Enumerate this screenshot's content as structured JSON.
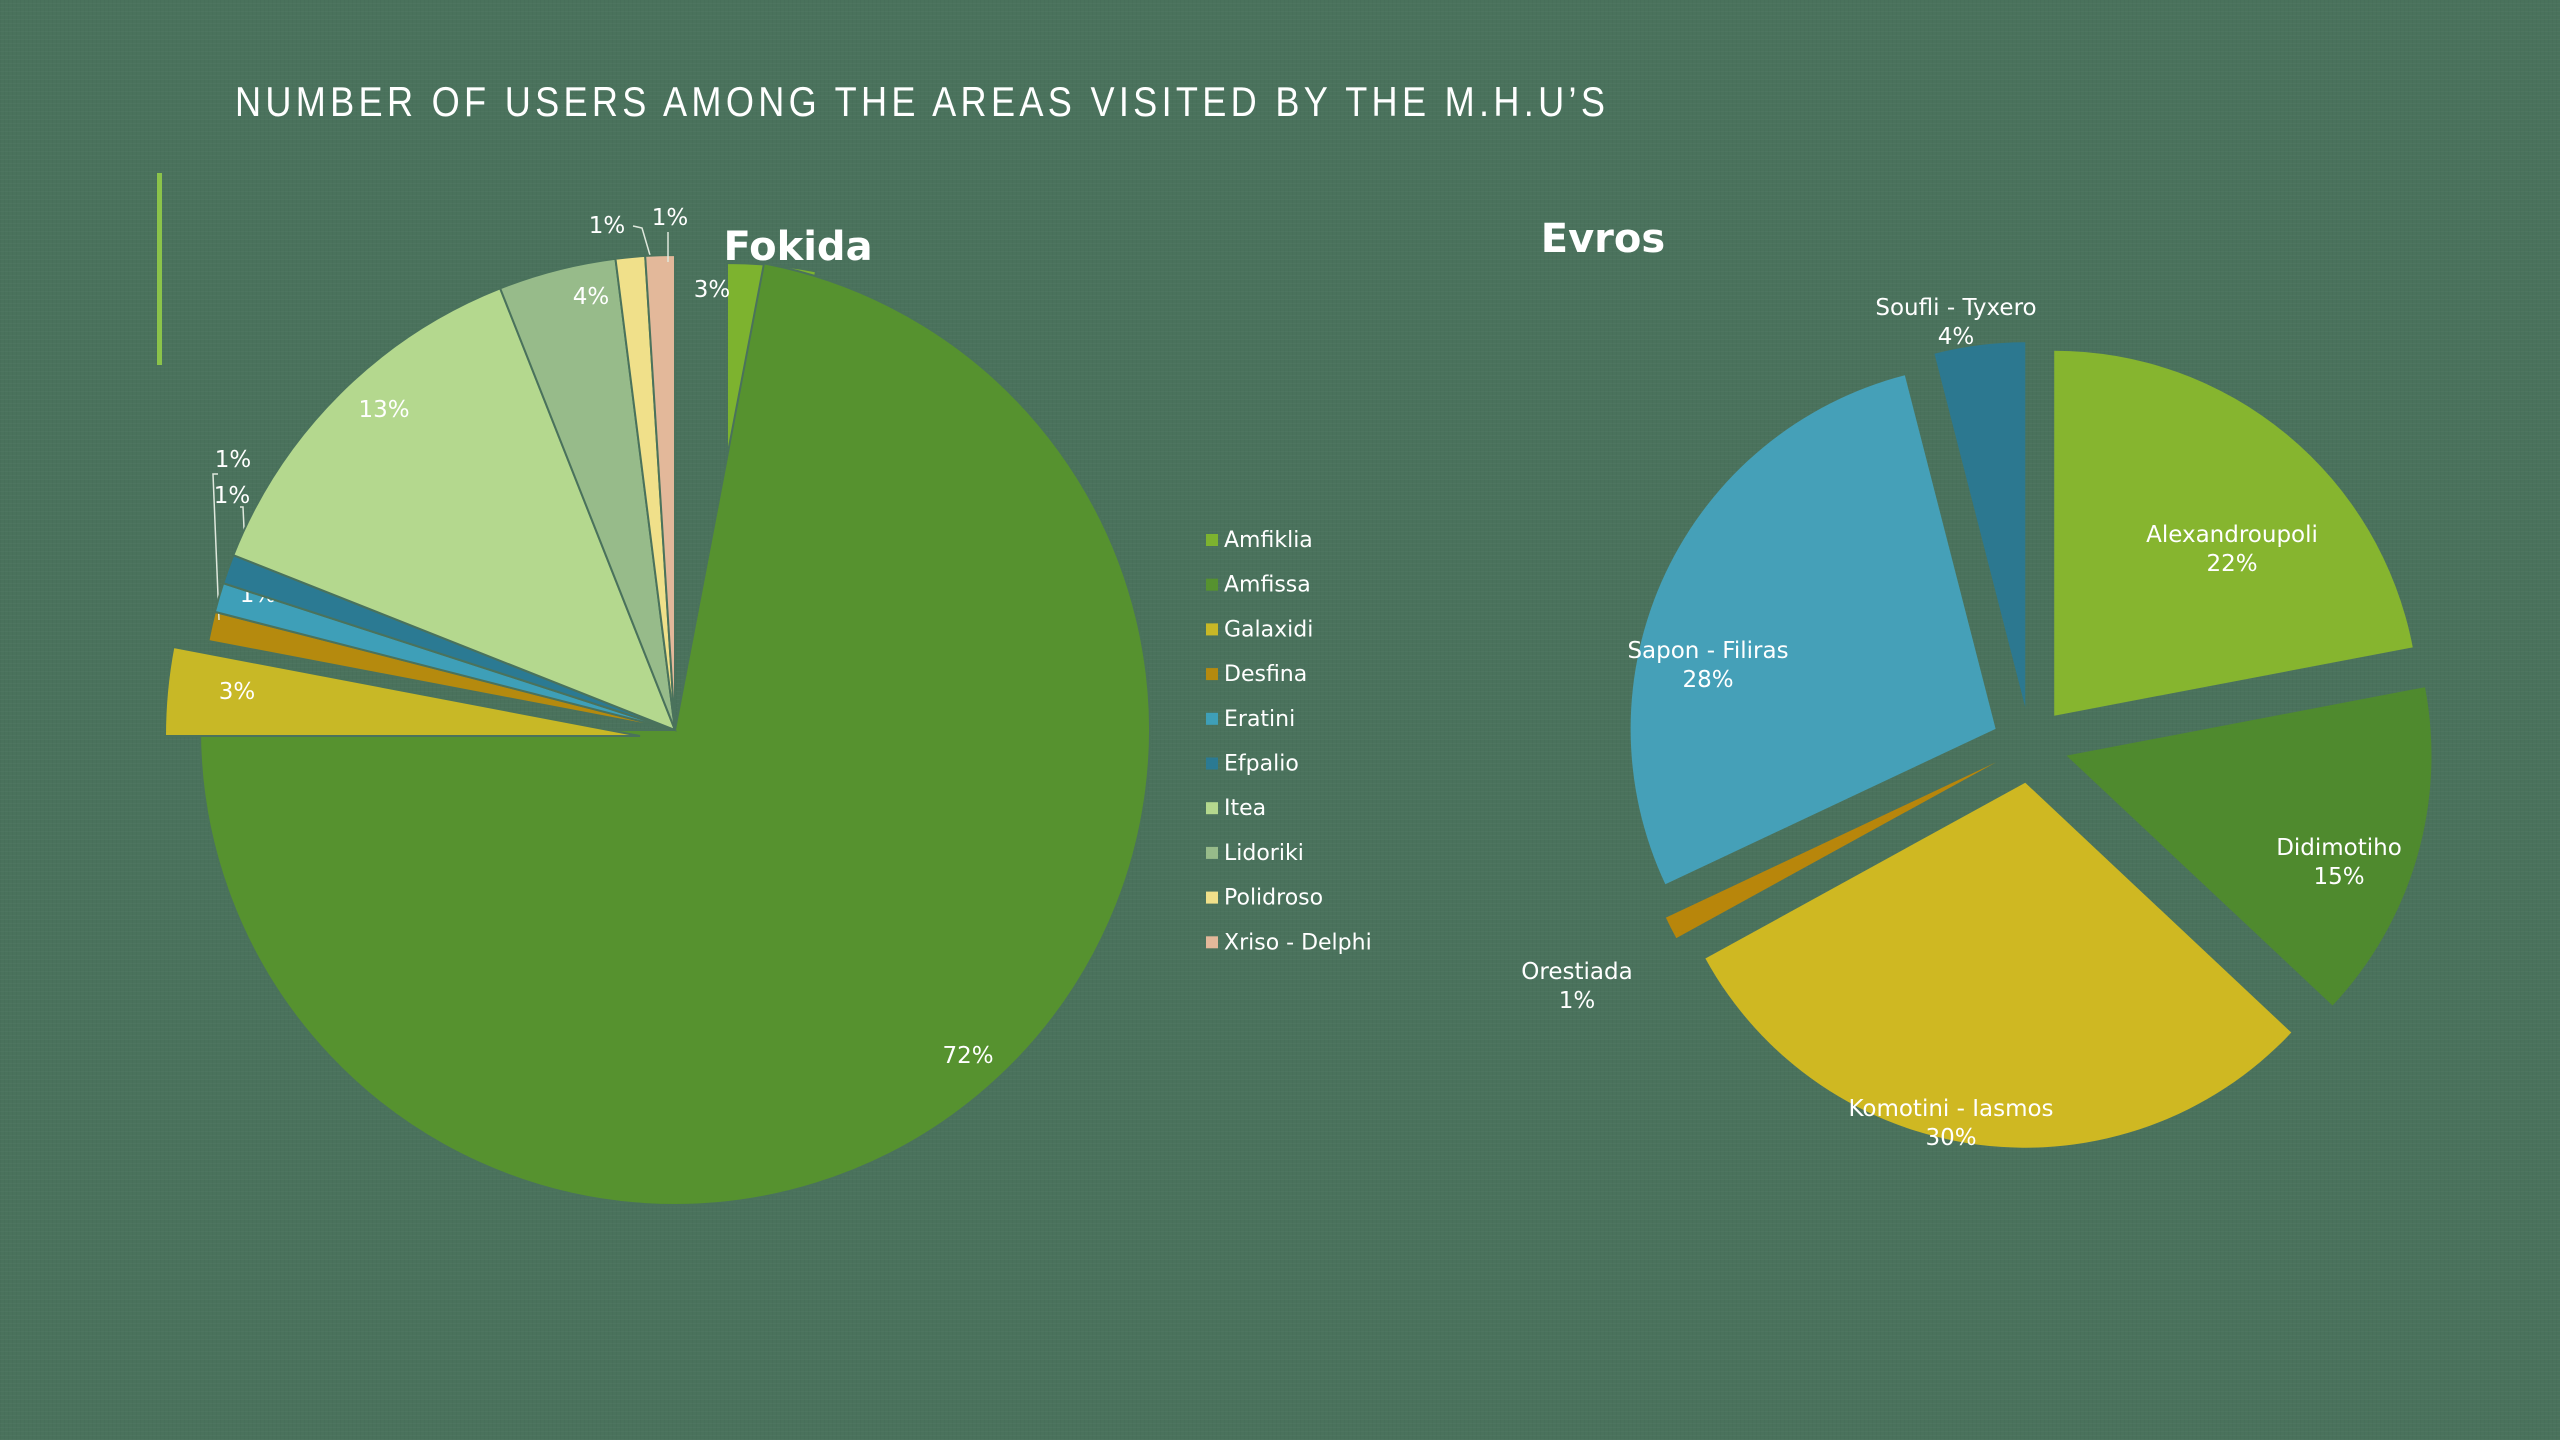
{
  "slide": {
    "title": "NUMBER OF USERS AMONG THE AREAS VISITED BY THE M.H.U’S"
  },
  "chart_data": [
    {
      "type": "pie",
      "title": "Fokida",
      "categories": [
        "Amfiklia",
        "Amfissa",
        "Galaxidi",
        "Desfina",
        "Eratini",
        "Efpalio",
        "Itea",
        "Lidoriki",
        "Polidroso",
        "Xriso - Delphi"
      ],
      "values": [
        3,
        72,
        3,
        1,
        1,
        1,
        13,
        4,
        1,
        1
      ],
      "data_labels": [
        "3%",
        "72%",
        "3%",
        "1%",
        "1%",
        "1%",
        "13%",
        "4%",
        "1%",
        "1%"
      ],
      "colors": [
        "#7db32f",
        "#56922f",
        "#c8b826",
        "#b58a0e",
        "#3e9fb8",
        "#2b7a93",
        "#b4d88e",
        "#97bb8a",
        "#f0e08a",
        "#e3b89a"
      ],
      "exploded": [
        "Amfiklia",
        "Galaxidi"
      ],
      "legend": "right"
    },
    {
      "type": "pie",
      "title": "Evros",
      "categories": [
        "Alexandroupoli",
        "Didimotiho",
        "Komotini - Iasmos",
        "Orestiada",
        "Sapon - Filiras",
        "Soufli - Tyxero"
      ],
      "values": [
        22,
        15,
        30,
        1,
        28,
        4
      ],
      "data_labels": [
        "22%",
        "15%",
        "30%",
        "1%",
        "28%",
        "4%"
      ],
      "colors": [
        "#86b52f",
        "#4f8a2e",
        "#cfb822",
        "#b8860b",
        "#45a0b8",
        "#2c7890"
      ],
      "exploded": "all",
      "legend": "none"
    }
  ]
}
